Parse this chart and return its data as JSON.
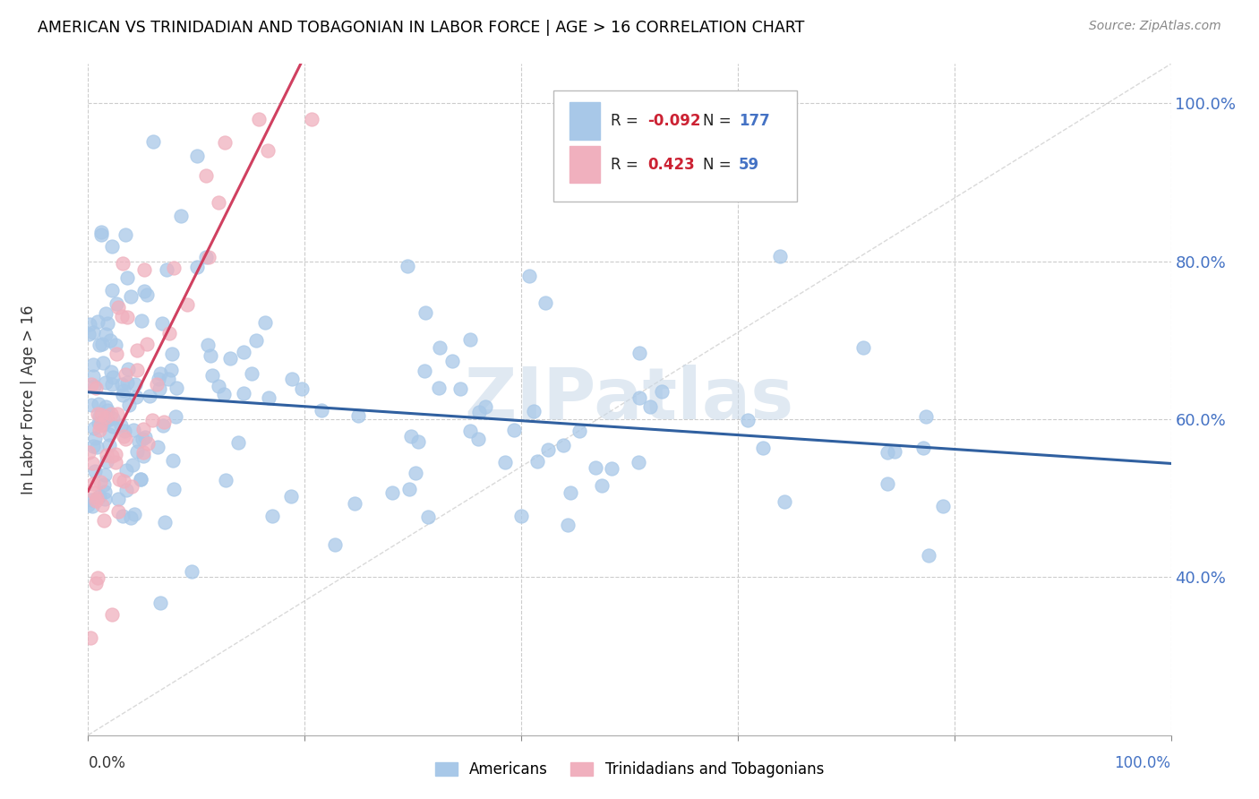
{
  "title": "AMERICAN VS TRINIDADIAN AND TOBAGONIAN IN LABOR FORCE | AGE > 16 CORRELATION CHART",
  "source": "Source: ZipAtlas.com",
  "ylabel": "In Labor Force | Age > 16",
  "ytick_labels": [
    "40.0%",
    "60.0%",
    "80.0%",
    "100.0%"
  ],
  "ytick_values": [
    0.4,
    0.6,
    0.8,
    1.0
  ],
  "xlim": [
    0.0,
    1.0
  ],
  "ylim": [
    0.2,
    1.05
  ],
  "blue_color": "#a8c8e8",
  "pink_color": "#f0b0be",
  "blue_line_color": "#3060a0",
  "pink_line_color": "#d04060",
  "dashed_line_color": "#c8c8c8",
  "grid_color": "#cccccc",
  "N_blue": 177,
  "N_pink": 59,
  "R_blue": -0.092,
  "R_pink": 0.423,
  "blue_seed": 2024,
  "pink_seed": 777,
  "watermark": "ZIPatlas",
  "legend_R_blue": "-0.092",
  "legend_N_blue": "177",
  "legend_R_pink": "0.423",
  "legend_N_pink": "59"
}
